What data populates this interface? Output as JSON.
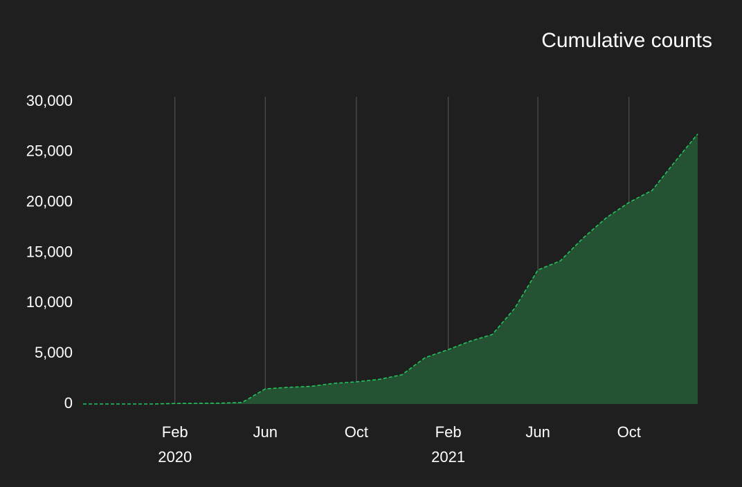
{
  "chart_data": {
    "type": "area",
    "title": "Cumulative counts",
    "x": [
      "2019-10",
      "2019-11",
      "2019-12",
      "2020-01",
      "2020-02",
      "2020-03",
      "2020-04",
      "2020-05",
      "2020-06",
      "2020-07",
      "2020-08",
      "2020-09",
      "2020-10",
      "2020-11",
      "2020-12",
      "2021-01",
      "2021-02",
      "2021-03",
      "2021-04",
      "2021-05",
      "2021-06",
      "2021-07",
      "2021-08",
      "2021-09",
      "2021-10",
      "2021-11",
      "2021-12",
      "2022-01"
    ],
    "series": [
      {
        "name": "Cumulative counts",
        "color": "#22c55e",
        "fill": "#245232",
        "values": [
          0,
          0,
          0,
          0,
          50,
          60,
          80,
          150,
          1500,
          1650,
          1750,
          2050,
          2200,
          2450,
          2900,
          4600,
          5400,
          6200,
          6900,
          9500,
          13300,
          14200,
          16500,
          18500,
          20000,
          21200,
          24000,
          26800
        ]
      }
    ],
    "xlim": [
      "2019-10",
      "2022-01"
    ],
    "xticks": [
      {
        "value": "2020-02",
        "label": "Feb"
      },
      {
        "value": "2020-06",
        "label": "Jun"
      },
      {
        "value": "2020-10",
        "label": "Oct"
      },
      {
        "value": "2021-02",
        "label": "Feb"
      },
      {
        "value": "2021-06",
        "label": "Jun"
      },
      {
        "value": "2021-10",
        "label": "Oct"
      }
    ],
    "xtick_groups": [
      {
        "value": "2020-02",
        "label": "2020"
      },
      {
        "value": "2021-02",
        "label": "2021"
      }
    ],
    "ylim": [
      0,
      30000
    ],
    "yticks": [
      0,
      {
        "value": 5000,
        "label": "5,000"
      },
      {
        "value": 10000,
        "label": "10,000"
      },
      {
        "value": 15000,
        "label": "15,000"
      },
      {
        "value": 20000,
        "label": "20,000"
      },
      {
        "value": 25000,
        "label": "25,000"
      },
      {
        "value": 30000,
        "label": "30,000"
      }
    ],
    "grid": "x",
    "line_style": "dashed"
  }
}
